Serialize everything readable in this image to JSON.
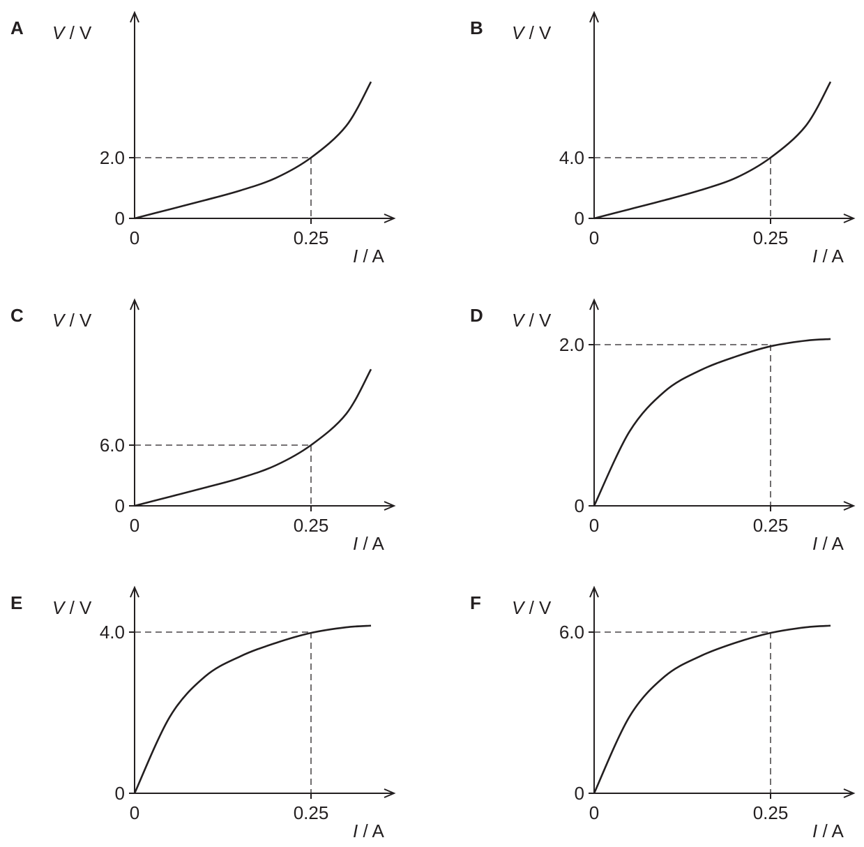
{
  "chart_data": [
    {
      "type": "line",
      "panel": "A",
      "ylabel": {
        "symbol": "V",
        "unit": " / V"
      },
      "xlabel": {
        "symbol": "I",
        "unit": " / A"
      },
      "xticks": [
        "0",
        "0.25"
      ],
      "yticks": [
        "0",
        "2.0"
      ],
      "marked_point": {
        "x": 0.25,
        "y": 2.0
      },
      "ylim": [
        0,
        4.5
      ],
      "shape": "concave-up",
      "series": [
        {
          "x": [
            0,
            0.05,
            0.1,
            0.15,
            0.2,
            0.25,
            0.3,
            0.335
          ],
          "y": [
            0,
            0.3,
            0.6,
            0.92,
            1.33,
            2.0,
            3.05,
            4.5
          ]
        }
      ]
    },
    {
      "type": "line",
      "panel": "B",
      "ylabel": {
        "symbol": "V",
        "unit": " / V"
      },
      "xlabel": {
        "symbol": "I",
        "unit": " / A"
      },
      "xticks": [
        "0",
        "0.25"
      ],
      "yticks": [
        "0",
        "4.0"
      ],
      "marked_point": {
        "x": 0.25,
        "y": 4.0
      },
      "ylim": [
        0,
        9.0
      ],
      "shape": "concave-up",
      "series": [
        {
          "x": [
            0,
            0.05,
            0.1,
            0.15,
            0.2,
            0.25,
            0.3,
            0.335
          ],
          "y": [
            0,
            0.6,
            1.2,
            1.85,
            2.65,
            4.0,
            6.1,
            9.0
          ]
        }
      ]
    },
    {
      "type": "line",
      "panel": "C",
      "ylabel": {
        "symbol": "V",
        "unit": " / V"
      },
      "xlabel": {
        "symbol": "I",
        "unit": " / A"
      },
      "xticks": [
        "0",
        "0.25"
      ],
      "yticks": [
        "0",
        "6.0"
      ],
      "marked_point": {
        "x": 0.25,
        "y": 6.0
      },
      "ylim": [
        0,
        13.5
      ],
      "shape": "concave-up",
      "series": [
        {
          "x": [
            0,
            0.05,
            0.1,
            0.15,
            0.2,
            0.25,
            0.3,
            0.335
          ],
          "y": [
            0,
            0.9,
            1.8,
            2.75,
            4.0,
            6.0,
            9.1,
            13.5
          ]
        }
      ]
    },
    {
      "type": "line",
      "panel": "D",
      "ylabel": {
        "symbol": "V",
        "unit": " / V"
      },
      "xlabel": {
        "symbol": "I",
        "unit": " / A"
      },
      "xticks": [
        "0",
        "0.25"
      ],
      "yticks": [
        "0",
        "2.0"
      ],
      "marked_point": {
        "x": 0.25,
        "y": 2.0
      },
      "ylim": [
        0,
        2.07
      ],
      "shape": "concave-down",
      "series": [
        {
          "x": [
            0,
            0.05,
            0.1,
            0.15,
            0.2,
            0.25,
            0.3,
            0.335
          ],
          "y": [
            0,
            0.92,
            1.42,
            1.68,
            1.85,
            1.98,
            2.05,
            2.07
          ]
        }
      ]
    },
    {
      "type": "line",
      "panel": "E",
      "ylabel": {
        "symbol": "V",
        "unit": " / V"
      },
      "xlabel": {
        "symbol": "I",
        "unit": " / A"
      },
      "xticks": [
        "0",
        "0.25"
      ],
      "yticks": [
        "0",
        "4.0"
      ],
      "marked_point": {
        "x": 0.25,
        "y": 4.0
      },
      "ylim": [
        0,
        4.16
      ],
      "shape": "concave-down",
      "series": [
        {
          "x": [
            0,
            0.05,
            0.1,
            0.15,
            0.2,
            0.25,
            0.3,
            0.335
          ],
          "y": [
            0,
            1.9,
            2.9,
            3.4,
            3.73,
            3.98,
            4.12,
            4.16
          ]
        }
      ]
    },
    {
      "type": "line",
      "panel": "F",
      "ylabel": {
        "symbol": "V",
        "unit": " / V"
      },
      "xlabel": {
        "symbol": "I",
        "unit": " / A"
      },
      "xticks": [
        "0",
        "0.25"
      ],
      "yticks": [
        "0",
        "6.0"
      ],
      "marked_point": {
        "x": 0.25,
        "y": 6.0
      },
      "ylim": [
        0,
        6.24
      ],
      "shape": "concave-down",
      "series": [
        {
          "x": [
            0,
            0.05,
            0.1,
            0.15,
            0.2,
            0.25,
            0.3,
            0.335
          ],
          "y": [
            0,
            2.85,
            4.35,
            5.1,
            5.6,
            5.97,
            6.18,
            6.24
          ]
        }
      ]
    }
  ]
}
